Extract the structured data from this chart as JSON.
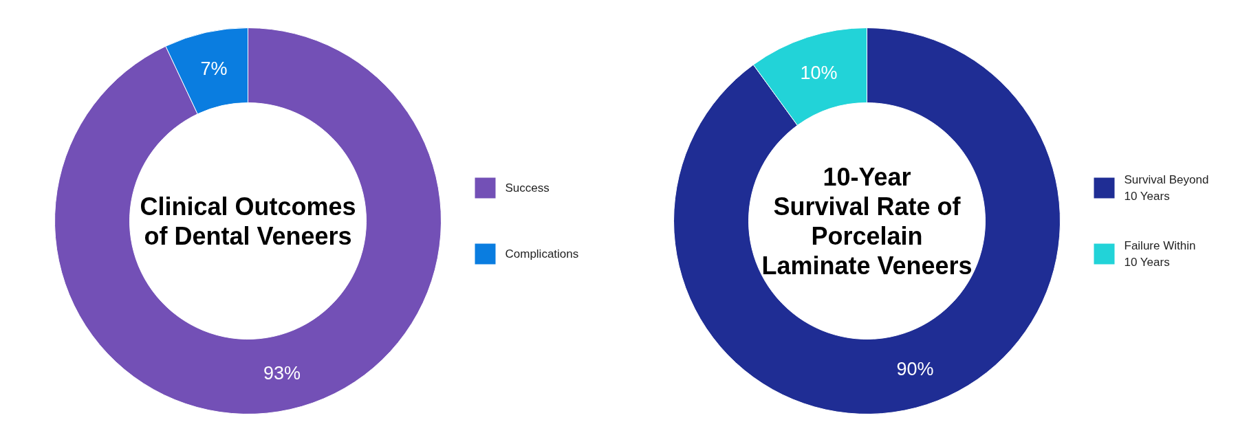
{
  "chart_data": [
    {
      "type": "donut",
      "title": "Clinical Outcomes\nof Dental Veneers",
      "categories": [
        "Success",
        "Complications"
      ],
      "values": [
        93,
        7
      ],
      "value_labels": [
        "93%",
        "7%"
      ],
      "colors": [
        "#7350b6",
        "#0a7de0"
      ],
      "legend": "right"
    },
    {
      "type": "donut",
      "title": "10-Year\nSurvival Rate of\nPorcelain\nLaminate Veneers",
      "categories": [
        "Survival Beyond 10 Years",
        "Failure Within 10 Years"
      ],
      "values": [
        90,
        10
      ],
      "value_labels": [
        "90%",
        "10%"
      ],
      "colors": [
        "#1f2d94",
        "#22d3d8"
      ],
      "legend": "right"
    }
  ]
}
